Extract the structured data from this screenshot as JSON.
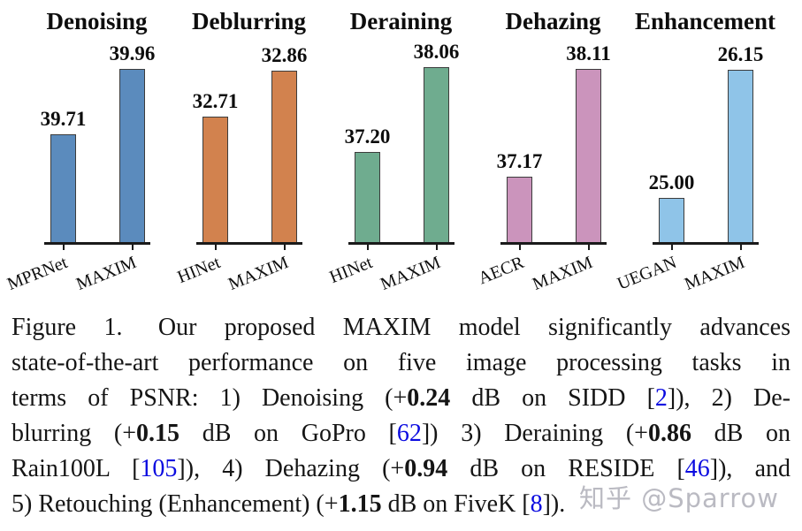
{
  "chart_data": [
    {
      "type": "bar",
      "title": "Denoising",
      "categories": [
        "MPRNet",
        "MAXIM"
      ],
      "values": [
        39.71,
        39.96
      ],
      "value_labels": [
        "39.71",
        "39.96"
      ],
      "color": "#5b8bbd",
      "ylim": [
        39.3,
        40.0
      ],
      "grid": false,
      "legend": "none"
    },
    {
      "type": "bar",
      "title": "Deblurring",
      "categories": [
        "HINet",
        "MAXIM"
      ],
      "values": [
        32.71,
        32.86
      ],
      "value_labels": [
        "32.71",
        "32.86"
      ],
      "color": "#d2824e",
      "ylim": [
        32.3,
        32.9
      ],
      "grid": false,
      "legend": "none"
    },
    {
      "type": "bar",
      "title": "Deraining",
      "categories": [
        "HINet",
        "MAXIM"
      ],
      "values": [
        37.2,
        38.06
      ],
      "value_labels": [
        "37.20",
        "38.06"
      ],
      "color": "#6fac8f",
      "ylim": [
        36.28,
        38.15
      ],
      "grid": false,
      "legend": "none"
    },
    {
      "type": "bar",
      "title": "Dehazing",
      "categories": [
        "AECR",
        "MAXIM"
      ],
      "values": [
        37.17,
        38.11
      ],
      "value_labels": [
        "37.17",
        "38.11"
      ],
      "color": "#cb94bc",
      "ylim": [
        36.6,
        38.2
      ],
      "grid": false,
      "legend": "none"
    },
    {
      "type": "bar",
      "title": "Enhancement",
      "categories": [
        "UEGAN",
        "MAXIM"
      ],
      "values": [
        25.0,
        26.15
      ],
      "value_labels": [
        "25.00",
        "26.15"
      ],
      "color": "#8fc4e8",
      "ylim": [
        24.6,
        26.25
      ],
      "grid": false,
      "legend": "none"
    }
  ],
  "caption": {
    "lines": [
      [
        {
          "t": "Figure 1.",
          "s": "f"
        },
        {
          "t": "Our proposed MAXIM model significantly advances",
          "s": "n"
        }
      ],
      [
        {
          "t": "state-of-the-art performance on five image processing tasks in",
          "s": "n"
        }
      ],
      [
        {
          "t": "terms of PSNR: 1) Denoising (+",
          "s": "n"
        },
        {
          "t": "0.24",
          "s": "b"
        },
        {
          "t": " dB on SIDD [",
          "s": "n"
        },
        {
          "t": "2",
          "s": "c"
        },
        {
          "t": "]), 2) De-",
          "s": "n"
        }
      ],
      [
        {
          "t": "blurring (+",
          "s": "n"
        },
        {
          "t": "0.15",
          "s": "b"
        },
        {
          "t": " dB on GoPro [",
          "s": "n"
        },
        {
          "t": "62",
          "s": "c"
        },
        {
          "t": "]) 3) Deraining (+",
          "s": "n"
        },
        {
          "t": "0.86",
          "s": "b"
        },
        {
          "t": " dB on",
          "s": "n"
        }
      ],
      [
        {
          "t": "Rain100L [",
          "s": "n"
        },
        {
          "t": "105",
          "s": "c"
        },
        {
          "t": "]), 4) Dehazing (+",
          "s": "n"
        },
        {
          "t": "0.94",
          "s": "b"
        },
        {
          "t": " dB on RESIDE [",
          "s": "n"
        },
        {
          "t": "46",
          "s": "c"
        },
        {
          "t": "]), and",
          "s": "n"
        }
      ],
      [
        {
          "t": "5) Retouching (Enhancement) (+",
          "s": "n"
        },
        {
          "t": "1.15",
          "s": "b"
        },
        {
          "t": " dB on FiveK [",
          "s": "n"
        },
        {
          "t": "8",
          "s": "c"
        },
        {
          "t": "]).",
          "s": "n"
        }
      ]
    ]
  },
  "watermark": {
    "text": "知乎 @Sparrow"
  }
}
